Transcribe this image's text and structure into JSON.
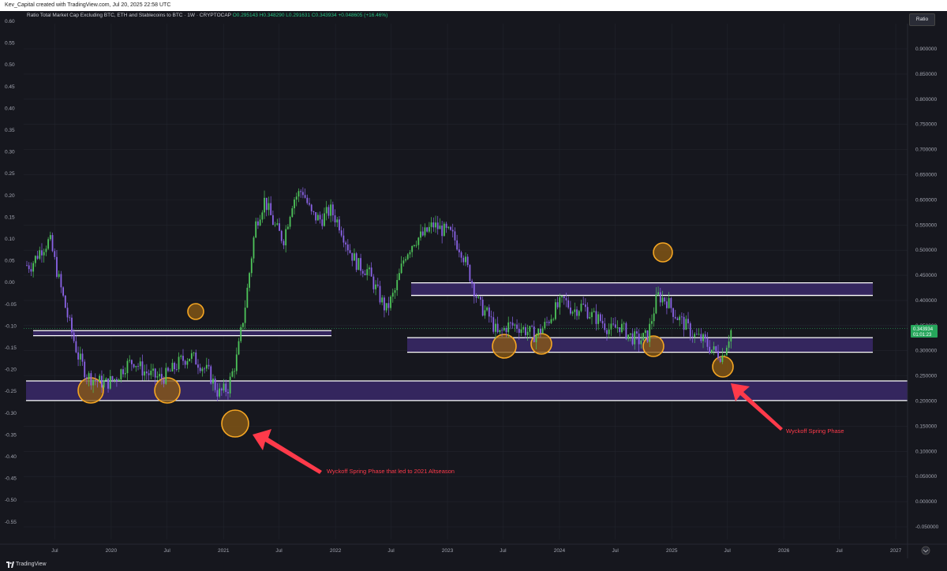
{
  "header": {
    "credit": "Kev_Capital created with TradingView.com, Jul 20, 2025 22:58 UTC"
  },
  "legend": {
    "symbol": "Ratio Total Market Cap Excluding BTC, ETH and Stablecoins to BTC · 1W · CRYPTOCAP",
    "ohlc": "O0.295143 H0.348290 L0.291631 C0.343934 +0.048605 (+16.46%)"
  },
  "scale_button": "Ratio",
  "price_tag": {
    "value": "0.343934",
    "countdown": "01:01:23"
  },
  "left_axis": [
    "0.60",
    "0.55",
    "0.50",
    "0.45",
    "0.40",
    "0.35",
    "0.30",
    "0.25",
    "0.20",
    "0.15",
    "0.10",
    "0.05",
    "0.00",
    "-0.05",
    "-0.10",
    "-0.15",
    "-0.20",
    "-0.25",
    "-0.30",
    "-0.35",
    "-0.40",
    "-0.45",
    "-0.50",
    "-0.55"
  ],
  "right_axis": [
    "0.900000",
    "0.850000",
    "0.800000",
    "0.750000",
    "0.700000",
    "0.650000",
    "0.600000",
    "0.550000",
    "0.500000",
    "0.450000",
    "0.400000",
    "0.350000",
    "0.300000",
    "0.250000",
    "0.200000",
    "0.150000",
    "0.100000",
    "0.050000",
    "0.000000",
    "-0.050000"
  ],
  "x_axis": [
    "Jul",
    "2020",
    "Jul",
    "2021",
    "Jul",
    "2022",
    "Jul",
    "2023",
    "Jul",
    "2024",
    "Jul",
    "2025",
    "Jul",
    "2026",
    "Jul",
    "2027"
  ],
  "annotations": {
    "spring_2021": "Wyckoff Spring Phase that led to 2021 Altseason",
    "spring_2025": "Wyckoff Spring Phase"
  },
  "footer": {
    "brand": "TradingView"
  },
  "colors": {
    "background": "#16171e",
    "candle_up": "#4ec45a",
    "candle_down": "#8a63e6",
    "zone_fill": "#34265e",
    "circle_fill": "#8a5a14",
    "circle_stroke": "#f5a623",
    "arrow": "#ff3a4a",
    "price_tag": "#26a65b"
  },
  "chart_data": {
    "type": "candlestick",
    "series": [
      {
        "name": "Ratio Total Market Cap Excluding BTC, ETH and Stablecoins to BTC",
        "values": [
          [
            "2019-04",
            0.47
          ],
          [
            "2019-05",
            0.5
          ],
          [
            "2019-06",
            0.52
          ],
          [
            "2019-07",
            0.44
          ],
          [
            "2019-08",
            0.36
          ],
          [
            "2019-09",
            0.29
          ],
          [
            "2019-10",
            0.25
          ],
          [
            "2019-11",
            0.24
          ],
          [
            "2019-12",
            0.235
          ],
          [
            "2020-01",
            0.245
          ],
          [
            "2020-02",
            0.27
          ],
          [
            "2020-03",
            0.28
          ],
          [
            "2020-04",
            0.26
          ],
          [
            "2020-05",
            0.25
          ],
          [
            "2020-06",
            0.245
          ],
          [
            "2020-07",
            0.26
          ],
          [
            "2020-08",
            0.28
          ],
          [
            "2020-09",
            0.29
          ],
          [
            "2020-10",
            0.275
          ],
          [
            "2020-11",
            0.255
          ],
          [
            "2020-12",
            0.215
          ],
          [
            "2021-01",
            0.225
          ],
          [
            "2021-02",
            0.29
          ],
          [
            "2021-03",
            0.4
          ],
          [
            "2021-04",
            0.55
          ],
          [
            "2021-05",
            0.6
          ],
          [
            "2021-06",
            0.55
          ],
          [
            "2021-07",
            0.52
          ],
          [
            "2021-08",
            0.6
          ],
          [
            "2021-09",
            0.62
          ],
          [
            "2021-10",
            0.57
          ],
          [
            "2021-11",
            0.56
          ],
          [
            "2021-12",
            0.58
          ],
          [
            "2022-01",
            0.55
          ],
          [
            "2022-02",
            0.5
          ],
          [
            "2022-03",
            0.47
          ],
          [
            "2022-04",
            0.46
          ],
          [
            "2022-05",
            0.42
          ],
          [
            "2022-06",
            0.38
          ],
          [
            "2022-07",
            0.42
          ],
          [
            "2022-08",
            0.49
          ],
          [
            "2022-09",
            0.52
          ],
          [
            "2022-10",
            0.53
          ],
          [
            "2022-11",
            0.55
          ],
          [
            "2022-12",
            0.54
          ],
          [
            "2023-01",
            0.53
          ],
          [
            "2023-02",
            0.5
          ],
          [
            "2023-03",
            0.45
          ],
          [
            "2023-04",
            0.39
          ],
          [
            "2023-05",
            0.37
          ],
          [
            "2023-06",
            0.33
          ],
          [
            "2023-07",
            0.35
          ],
          [
            "2023-08",
            0.35
          ],
          [
            "2023-09",
            0.34
          ],
          [
            "2023-10",
            0.33
          ],
          [
            "2023-11",
            0.35
          ],
          [
            "2023-12",
            0.38
          ],
          [
            "2024-01",
            0.4
          ],
          [
            "2024-02",
            0.38
          ],
          [
            "2024-03",
            0.39
          ],
          [
            "2024-04",
            0.37
          ],
          [
            "2024-05",
            0.36
          ],
          [
            "2024-06",
            0.34
          ],
          [
            "2024-07",
            0.35
          ],
          [
            "2024-08",
            0.33
          ],
          [
            "2024-09",
            0.32
          ],
          [
            "2024-10",
            0.33
          ],
          [
            "2024-11",
            0.41
          ],
          [
            "2024-12",
            0.4
          ],
          [
            "2025-01",
            0.37
          ],
          [
            "2025-02",
            0.35
          ],
          [
            "2025-03",
            0.33
          ],
          [
            "2025-04",
            0.32
          ],
          [
            "2025-05",
            0.3
          ],
          [
            "2025-06",
            0.29
          ],
          [
            "2025-07",
            0.344
          ]
        ]
      }
    ],
    "ylim": [
      -0.05,
      0.9
    ],
    "zones": [
      {
        "from": 0.33,
        "to": 0.34,
        "period": "2019-2021"
      },
      {
        "from": 0.201,
        "to": 0.24,
        "period": "2019-2026"
      },
      {
        "from": 0.41,
        "to": 0.435,
        "period": "2022-2026"
      },
      {
        "from": 0.297,
        "to": 0.326,
        "period": "2022-2026"
      }
    ],
    "grid": true
  }
}
